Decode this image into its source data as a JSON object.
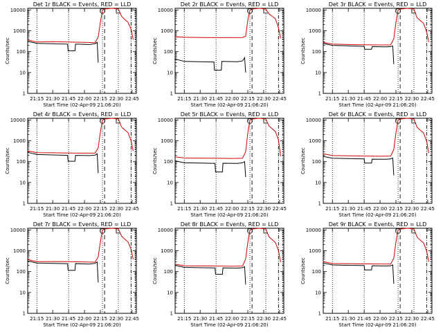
{
  "chart_data": {
    "type": "line",
    "time_ticks": [
      "21:15",
      "21:30",
      "21:45",
      "22:00",
      "22:15",
      "22:30",
      "22:45"
    ],
    "y_ticks": [
      "1",
      "10",
      "100",
      "1000",
      "10000"
    ],
    "ylim": [
      1,
      12000
    ],
    "y_scale": "log",
    "ylabel": "Counts/sec",
    "xlabel": "Start Time (02-Apr-09 21:06:20)",
    "x_start": "21:06:20",
    "x_end": "22:49",
    "marker_times": [
      "22:17",
      "22:32"
    ],
    "dashed_time": "22:19",
    "dotted_times": [
      "21:15",
      "21:45",
      "22:17",
      "22:32",
      "22:48"
    ],
    "dashdot_time": "22:44",
    "panels": [
      {
        "title": "Det 1r BLACK = Events, RED = LLD",
        "series": [
          {
            "name": "Events",
            "color": "#000000",
            "x": [
              "21:06",
              "21:15",
              "21:30",
              "21:44",
              "21:44:30",
              "21:51",
              "21:51:30",
              "22:05",
              "22:10",
              "22:12",
              "22:13"
            ],
            "y": [
              320,
              250,
              240,
              230,
              110,
              110,
              230,
              220,
              240,
              280,
              30
            ]
          },
          {
            "name": "LLD",
            "color": "#d00000",
            "x": [
              "21:06",
              "21:15",
              "21:30",
              "21:45",
              "22:00",
              "22:10",
              "22:13",
              "22:15",
              "22:17",
              "22:19",
              "22:26",
              "22:32",
              "22:35",
              "22:38",
              "22:41",
              "22:44",
              "22:46"
            ],
            "y": [
              370,
              290,
              300,
              290,
              280,
              270,
              500,
              2600,
              10000,
              11000,
              12000,
              11000,
              5000,
              3500,
              2600,
              1200,
              380
            ]
          }
        ]
      },
      {
        "title": "Det 2r BLACK = Events, RED = LLD",
        "series": [
          {
            "name": "Events",
            "color": "#000000",
            "x": [
              "21:06",
              "21:15",
              "21:30",
              "21:43",
              "21:43:30",
              "21:50",
              "21:50:30",
              "22:05",
              "22:10",
              "22:12",
              "22:13"
            ],
            "y": [
              45,
              34,
              33,
              32,
              13,
              13,
              34,
              33,
              36,
              52,
              10
            ]
          },
          {
            "name": "LLD",
            "color": "#d00000",
            "x": [
              "21:06",
              "21:15",
              "21:30",
              "21:45",
              "22:00",
              "22:10",
              "22:13",
              "22:15",
              "22:17",
              "22:19",
              "22:26",
              "22:32",
              "22:35",
              "22:38",
              "22:41",
              "22:44",
              "22:46"
            ],
            "y": [
              520,
              490,
              480,
              470,
              470,
              480,
              550,
              3200,
              10000,
              11000,
              12000,
              11000,
              6500,
              5000,
              3800,
              1400,
              430
            ]
          }
        ]
      },
      {
        "title": "Det 3r BLACK = Events, RED = LLD",
        "series": [
          {
            "name": "Events",
            "color": "#000000",
            "x": [
              "21:06",
              "21:15",
              "21:30",
              "21:45",
              "21:45:30",
              "21:52",
              "21:52:30",
              "22:05",
              "22:10",
              "22:12",
              "22:13"
            ],
            "y": [
              250,
              200,
              190,
              180,
              130,
              130,
              175,
              170,
              175,
              190,
              25
            ]
          },
          {
            "name": "LLD",
            "color": "#d00000",
            "x": [
              "21:06",
              "21:15",
              "21:30",
              "21:45",
              "22:00",
              "22:10",
              "22:13",
              "22:15",
              "22:17",
              "22:19",
              "22:26",
              "22:32",
              "22:35",
              "22:38",
              "22:41",
              "22:44",
              "22:46"
            ],
            "y": [
              280,
              230,
              220,
              215,
              210,
              210,
              420,
              2500,
              10000,
              11000,
              12000,
              11000,
              4200,
              3100,
              2300,
              900,
              290
            ]
          }
        ]
      },
      {
        "title": "Det 4r BLACK = Events, RED = LLD",
        "series": [
          {
            "name": "Events",
            "color": "#000000",
            "x": [
              "21:06",
              "21:15",
              "21:30",
              "21:44",
              "21:44:30",
              "21:51",
              "21:51:30",
              "22:05",
              "22:10",
              "22:12",
              "22:13"
            ],
            "y": [
              280,
              220,
              210,
              200,
              105,
              105,
              200,
              195,
              205,
              240,
              28
            ]
          },
          {
            "name": "LLD",
            "color": "#d00000",
            "x": [
              "21:06",
              "21:15",
              "21:30",
              "21:45",
              "22:00",
              "22:10",
              "22:13",
              "22:15",
              "22:17",
              "22:19",
              "22:26",
              "22:32",
              "22:35",
              "22:38",
              "22:41",
              "22:44",
              "22:46"
            ],
            "y": [
              330,
              270,
              265,
              260,
              255,
              255,
              460,
              2600,
              10000,
              11000,
              12000,
              11000,
              4600,
              3300,
              2500,
              1000,
              330
            ]
          }
        ]
      },
      {
        "title": "Det 5r BLACK = Events, RED = LLD",
        "series": [
          {
            "name": "Events",
            "color": "#000000",
            "x": [
              "21:06",
              "21:15",
              "21:30",
              "21:44",
              "21:44:30",
              "21:51",
              "21:51:30",
              "22:05",
              "22:10",
              "22:12",
              "22:13"
            ],
            "y": [
              110,
              88,
              85,
              82,
              32,
              32,
              84,
              82,
              88,
              100,
              18
            ]
          },
          {
            "name": "LLD",
            "color": "#d00000",
            "x": [
              "21:06",
              "21:15",
              "21:30",
              "21:45",
              "22:00",
              "22:10",
              "22:13",
              "22:15",
              "22:17",
              "22:19",
              "22:26",
              "22:32",
              "22:35",
              "22:38",
              "22:41",
              "22:44",
              "22:46"
            ],
            "y": [
              170,
              150,
              148,
              145,
              142,
              145,
              300,
              2300,
              10000,
              11000,
              12000,
              11000,
              5200,
              3800,
              2800,
              1100,
              180
            ]
          }
        ]
      },
      {
        "title": "Det 6r BLACK = Events, RED = LLD",
        "series": [
          {
            "name": "Events",
            "color": "#000000",
            "x": [
              "21:06",
              "21:15",
              "21:30",
              "21:45",
              "21:45:30",
              "21:52",
              "21:52:30",
              "22:05",
              "22:10",
              "22:12",
              "22:13"
            ],
            "y": [
              180,
              145,
              140,
              135,
              85,
              85,
              132,
              130,
              135,
              150,
              22
            ]
          },
          {
            "name": "LLD",
            "color": "#d00000",
            "x": [
              "21:06",
              "21:15",
              "21:30",
              "21:45",
              "22:00",
              "22:10",
              "22:13",
              "22:15",
              "22:17",
              "22:19",
              "22:26",
              "22:32",
              "22:35",
              "22:38",
              "22:41",
              "22:44",
              "22:46"
            ],
            "y": [
              240,
              195,
              190,
              185,
              182,
              185,
              380,
              2400,
              10000,
              11000,
              12000,
              11000,
              4400,
              3200,
              2400,
              950,
              260
            ]
          }
        ]
      },
      {
        "title": "Det 7r BLACK = Events, RED = LLD",
        "series": [
          {
            "name": "Events",
            "color": "#000000",
            "x": [
              "21:06",
              "21:15",
              "21:30",
              "21:44",
              "21:44:30",
              "21:51",
              "21:51:30",
              "22:05",
              "22:10",
              "22:12",
              "22:13"
            ],
            "y": [
              330,
              260,
              250,
              240,
              115,
              115,
              240,
              230,
              250,
              290,
              30
            ]
          },
          {
            "name": "LLD",
            "color": "#d00000",
            "x": [
              "21:06",
              "21:15",
              "21:30",
              "21:45",
              "22:00",
              "22:10",
              "22:13",
              "22:15",
              "22:17",
              "22:19",
              "22:26",
              "22:32",
              "22:35",
              "22:38",
              "22:41",
              "22:44",
              "22:46"
            ],
            "y": [
              380,
              300,
              305,
              300,
              290,
              285,
              510,
              2700,
              10000,
              11000,
              12000,
              11000,
              5100,
              3600,
              2700,
              1200,
              390
            ]
          }
        ]
      },
      {
        "title": "Det 8r BLACK = Events, RED = LLD",
        "series": [
          {
            "name": "Events",
            "color": "#000000",
            "x": [
              "21:06",
              "21:15",
              "21:30",
              "21:44",
              "21:44:30",
              "21:51",
              "21:51:30",
              "22:05",
              "22:10",
              "22:12",
              "22:13"
            ],
            "y": [
              200,
              160,
              155,
              150,
              75,
              75,
              150,
              145,
              155,
              175,
              24
            ]
          },
          {
            "name": "LLD",
            "color": "#d00000",
            "x": [
              "21:06",
              "21:15",
              "21:30",
              "21:45",
              "22:00",
              "22:10",
              "22:13",
              "22:15",
              "22:17",
              "22:19",
              "22:26",
              "22:32",
              "22:35",
              "22:38",
              "22:41",
              "22:44",
              "22:46"
            ],
            "y": [
              230,
              190,
              188,
              185,
              182,
              185,
              400,
              2500,
              10000,
              11000,
              12000,
              11000,
              4700,
              3400,
              2500,
              1000,
              280
            ]
          }
        ]
      },
      {
        "title": "Det 9r BLACK = Events, RED = LLD",
        "series": [
          {
            "name": "Events",
            "color": "#000000",
            "x": [
              "21:06",
              "21:15",
              "21:30",
              "21:45",
              "21:45:30",
              "21:52",
              "21:52:30",
              "22:05",
              "22:10",
              "22:12",
              "22:13"
            ],
            "y": [
              260,
              210,
              200,
              195,
              120,
              120,
              190,
              185,
              190,
              210,
              26
            ]
          },
          {
            "name": "LLD",
            "color": "#d00000",
            "x": [
              "21:06",
              "21:15",
              "21:30",
              "21:45",
              "22:00",
              "22:10",
              "22:13",
              "22:15",
              "22:17",
              "22:19",
              "22:26",
              "22:32",
              "22:35",
              "22:38",
              "22:41",
              "22:44",
              "22:46"
            ],
            "y": [
              300,
              245,
              240,
              235,
              230,
              232,
              440,
              2600,
              10000,
              11000,
              12000,
              11000,
              4500,
              3200,
              2400,
              980,
              300
            ]
          }
        ]
      }
    ]
  }
}
